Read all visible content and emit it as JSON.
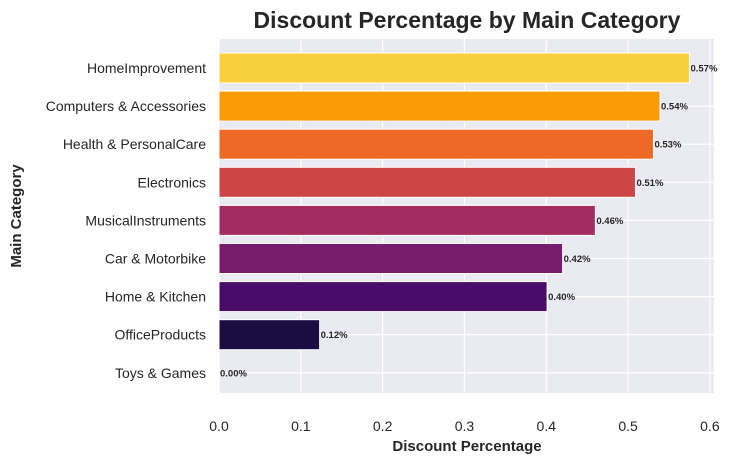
{
  "chart_data": {
    "type": "bar",
    "orientation": "horizontal",
    "title": "Discount Percentage by Main Category",
    "xlabel": "Discount Percentage",
    "ylabel": "Main Category",
    "xlim": [
      0,
      0.605
    ],
    "xticks": [
      "0.0",
      "0.1",
      "0.2",
      "0.3",
      "0.4",
      "0.5",
      "0.6"
    ],
    "grid": true,
    "categories": [
      "HomeImprovement",
      "Computers & Accessories",
      "Health & PersonalCare",
      "Electronics",
      "MusicalInstruments",
      "Car & Motorbike",
      "Home & Kitchen",
      "OfficeProducts",
      "Toys & Games"
    ],
    "values": [
      0.575,
      0.539,
      0.531,
      0.509,
      0.46,
      0.42,
      0.401,
      0.123,
      0.0
    ],
    "data_labels": [
      "0.57%",
      "0.54%",
      "0.53%",
      "0.51%",
      "0.46%",
      "0.42%",
      "0.40%",
      "0.12%",
      "0.00%"
    ],
    "colors": [
      "#f6d13d",
      "#fb9b06",
      "#ed6925",
      "#cf4446",
      "#a52c60",
      "#781c6d",
      "#4a0c6b",
      "#1b0c41",
      "#000004"
    ],
    "background": "#eaeaf2",
    "grid_color": "#ffffff"
  }
}
